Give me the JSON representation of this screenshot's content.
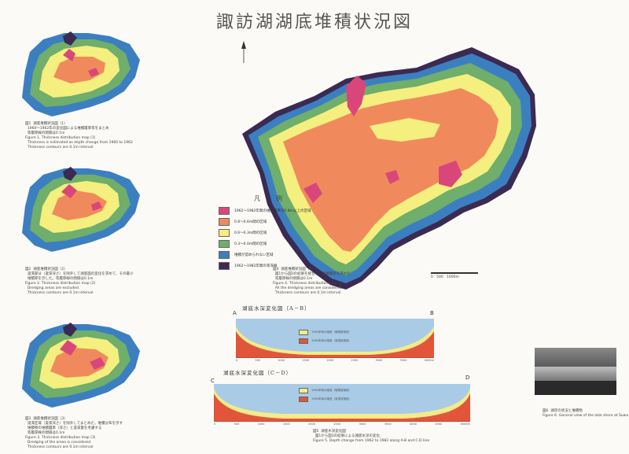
{
  "title": "諏訪湖湖底堆積状況図",
  "small_maps": [
    {
      "caption": "図1  湖底堆積状況図（1）\n  1960～1962年の変化図による堆積層厚等をまとめ\n  等層厚線の間隔は0.1m\nFigure 1. Thickness distribution map (1)\n  Thickness is estimated as depth change from 1960 to 1962\n  Thickness contours are 0.1m interval"
    },
    {
      "caption": "図2  湖底堆積状況図（2）\n  浚渫部分（浚渫深さ）を除外して湖底面の変化を求めて、その最小\n  堆積厚を示した。等層厚線の間隔は0.1m\nFigure 2. Thickness distribution map (2)\n  Dredging areas are excluded.\n  Thickness contours are 0.1m interval"
    },
    {
      "caption": "図3  湖底堆積状況図（3）\n  浚渫区域（浚渫深さ）を除外してまとめた。堆積分布を示す\n  堆積物の堆積層厚（深さ）と浚渫量を考慮する\n  等層厚線の間隔は0.1m\nFigure 3. Thickness distribution map (3)\n  Dredging of the areas is considered.\n  Thickness contours are 0.1m interval"
    }
  ],
  "main_map": {
    "caption": "図4  湖底堆積状況図（4）\n  図1から図3の結果を統合し、堆積層厚を求めた\n  等層厚線の間隔は0.1m\nFigure 4. Thickness distribution map (4)\n  All the dredging areas are considered.\n  Thickness contours are 0.1m interval",
    "scale_label": "0   500   1000m"
  },
  "legend": {
    "title": "凡　例",
    "items": [
      {
        "label": "1962～1982年間の堆積層厚が0.8m以上の区域",
        "color": "#d9477a"
      },
      {
        "label": "0.8～0.6m間の区域",
        "color": "#f08a5c"
      },
      {
        "label": "0.6～0.3m間の区域",
        "color": "#f4ef7e"
      },
      {
        "label": "0.3～0.0m間の区域",
        "color": "#6fae6b"
      },
      {
        "label": "堆積が認められない区域",
        "color": "#3c7fc0"
      },
      {
        "label": "1962～1982年間の等深線",
        "color": "#3b2a52"
      }
    ]
  },
  "sections": [
    {
      "title": "湖底水深変化図（A－B）",
      "left_label": "A",
      "right_label": "B",
      "legend": [
        "1962年時の湖底（堆積前湖底）",
        "1982年時の湖底（浚渫前湖底）"
      ],
      "ticks": [
        "0",
        "500",
        "1000",
        "1500",
        "2000",
        "2500",
        "3000",
        "3500",
        "4000m"
      ]
    },
    {
      "title": "湖底水深変化図（C－D）",
      "left_label": "C",
      "right_label": "D",
      "legend": [
        "1962年時の湖底（堆積前湖底）",
        "1982年時の湖底（浚渫前湖底）"
      ],
      "ticks": [
        "0",
        "500",
        "1000",
        "1500",
        "2000",
        "2500",
        "3000",
        "3500",
        "4000",
        "4500",
        "5000m"
      ],
      "caption": "図5  湖底水深変化図\n  図1から図3の結果による湖底水深の変化\nFigure 5. Depth change from 1962 to 1982 along A-B and C-D line"
    }
  ],
  "photo": {
    "caption": "図6  湖岸の状況と堆積物\nFigure 6. General view of the lake shore at Suwa"
  },
  "colors": {
    "pink": "#d9477a",
    "orange": "#f08a5c",
    "yellow": "#f4ef7e",
    "green": "#6fae6b",
    "blue": "#3c7fc0",
    "dark": "#3b2a52",
    "water": "#a9cbe6",
    "sediment": "#f3ec8a",
    "red": "#e3553a"
  }
}
